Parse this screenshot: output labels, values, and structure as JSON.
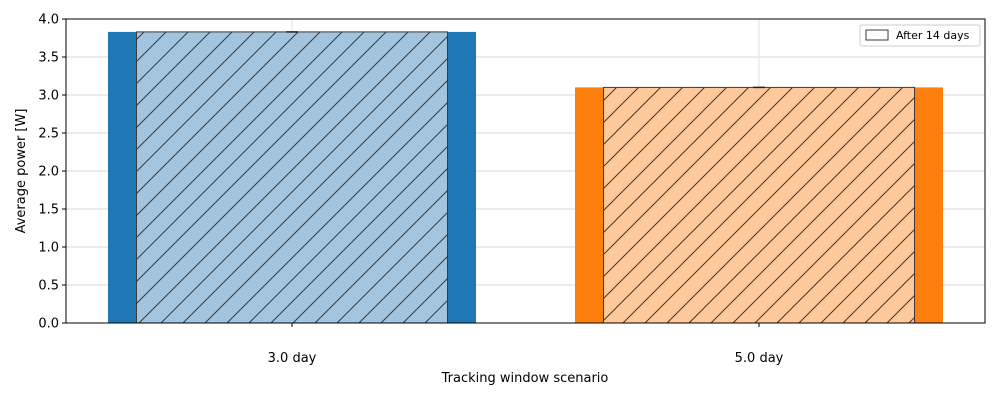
{
  "chart_data": {
    "type": "bar",
    "categories": [
      "3.0 day",
      "5.0 day"
    ],
    "xlabel": "Tracking window scenario",
    "ylabel": "Average power [W]",
    "ylim": [
      0,
      4.0
    ],
    "yticks": [
      0.0,
      0.5,
      1.0,
      1.5,
      2.0,
      2.5,
      3.0,
      3.5,
      4.0
    ],
    "ytick_labels": [
      "0.0",
      "0.5",
      "1.0",
      "1.5",
      "2.0",
      "2.5",
      "3.0",
      "3.5",
      "4.0"
    ],
    "grid": true,
    "legend_position": "top-right",
    "series": [
      {
        "values": [
          3.83,
          3.1
        ],
        "colors": [
          "#1f77b4",
          "#ff7f0e"
        ],
        "style": "solid, wide"
      },
      {
        "name": "After 14 days",
        "values": [
          3.83,
          3.1
        ],
        "colors": [
          "#a2c4de",
          "#ffc89b"
        ],
        "style": "hatched, narrow, with error bar"
      }
    ]
  }
}
